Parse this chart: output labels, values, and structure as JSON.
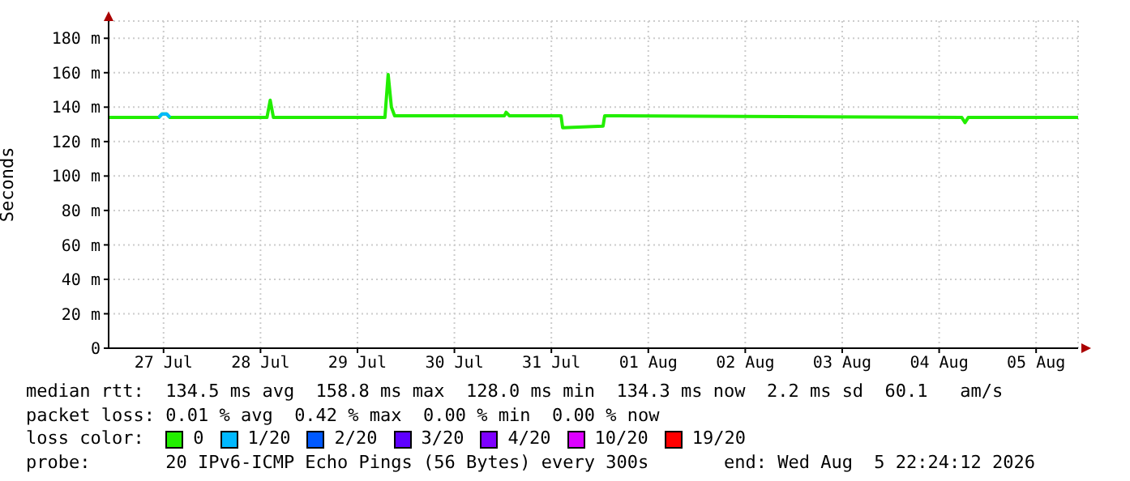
{
  "chart_data": {
    "type": "line",
    "ylabel": "Seconds",
    "legend_title": "loss color:",
    "legend": "bottom",
    "grid": true,
    "marker": "none",
    "line_style": "solid",
    "xlim": [
      "2026-07-26T22:24",
      "2026-08-05T22:24"
    ],
    "xticks": [
      {
        "value": "2026-07-27T12:00",
        "label": "27 Jul"
      },
      {
        "value": "2026-07-28T12:00",
        "label": "28 Jul"
      },
      {
        "value": "2026-07-29T12:00",
        "label": "29 Jul"
      },
      {
        "value": "2026-07-30T12:00",
        "label": "30 Jul"
      },
      {
        "value": "2026-07-31T12:00",
        "label": "31 Jul"
      },
      {
        "value": "2026-08-01T12:00",
        "label": "01 Aug"
      },
      {
        "value": "2026-08-02T12:00",
        "label": "02 Aug"
      },
      {
        "value": "2026-08-03T12:00",
        "label": "03 Aug"
      },
      {
        "value": "2026-08-04T12:00",
        "label": "04 Aug"
      },
      {
        "value": "2026-08-05T12:00",
        "label": "05 Aug"
      }
    ],
    "ylim": [
      0,
      190
    ],
    "yticks": [
      0,
      {
        "value": 20,
        "label": "20 m"
      },
      {
        "value": 40,
        "label": "40 m"
      },
      {
        "value": 60,
        "label": "60 m"
      },
      {
        "value": 80,
        "label": "80 m"
      },
      {
        "value": 100,
        "label": "100 m"
      },
      {
        "value": 120,
        "label": "120 m"
      },
      {
        "value": 140,
        "label": "140 m"
      },
      {
        "value": 160,
        "label": "160 m"
      },
      {
        "value": 180,
        "label": "180 m"
      }
    ],
    "series": [
      {
        "name": "0",
        "color": "#22ee00",
        "x": [
          "2026-07-26T22:24",
          "2026-07-27T10:48",
          "2026-07-27T11:36",
          "2026-07-27T12:48",
          "2026-07-27T13:36",
          "2026-07-28T13:36",
          "2026-07-28T14:24",
          "2026-07-28T15:12",
          "2026-07-29T18:48",
          "2026-07-29T19:36",
          "2026-07-29T20:24",
          "2026-07-29T21:12",
          "2026-07-31T00:24",
          "2026-07-31T00:48",
          "2026-07-31T01:36",
          "2026-07-31T14:24",
          "2026-07-31T14:48",
          "2026-08-01T00:48",
          "2026-08-01T01:12",
          "2026-08-04T17:36",
          "2026-08-04T18:24",
          "2026-08-04T19:12",
          "2026-08-05T22:24"
        ],
        "values": [
          134,
          134,
          136,
          136,
          134,
          134,
          144,
          134,
          134,
          159,
          140,
          135,
          135,
          137,
          135,
          135,
          128,
          129,
          135,
          134,
          131,
          134,
          134
        ]
      },
      {
        "name": "1/20",
        "color": "#00b8ff",
        "x": [
          "2026-07-27T10:48",
          "2026-07-27T11:36",
          "2026-07-27T12:48",
          "2026-07-27T13:36"
        ],
        "values": [
          134,
          136,
          136,
          134
        ]
      },
      {
        "name": "2/20",
        "color": "#0059ff"
      },
      {
        "name": "3/20",
        "color": "#5e00ff"
      },
      {
        "name": "4/20",
        "color": "#7e00ff"
      },
      {
        "name": "10/20",
        "color": "#dd00ff"
      },
      {
        "name": "19/20",
        "color": "#ff0000"
      }
    ],
    "annotations": [
      "median rtt:  134.5 ms avg  158.8 ms max  128.0 ms min  134.3 ms now  2.2 ms sd  60.1   am/s",
      "packet loss: 0.01 % avg  0.42 % max  0.00 % min  0.00 % now",
      "probe:       20 IPv6-ICMP Echo Pings (56 Bytes) every 300s       end: Wed Aug  5 22:24:12 2026"
    ]
  }
}
